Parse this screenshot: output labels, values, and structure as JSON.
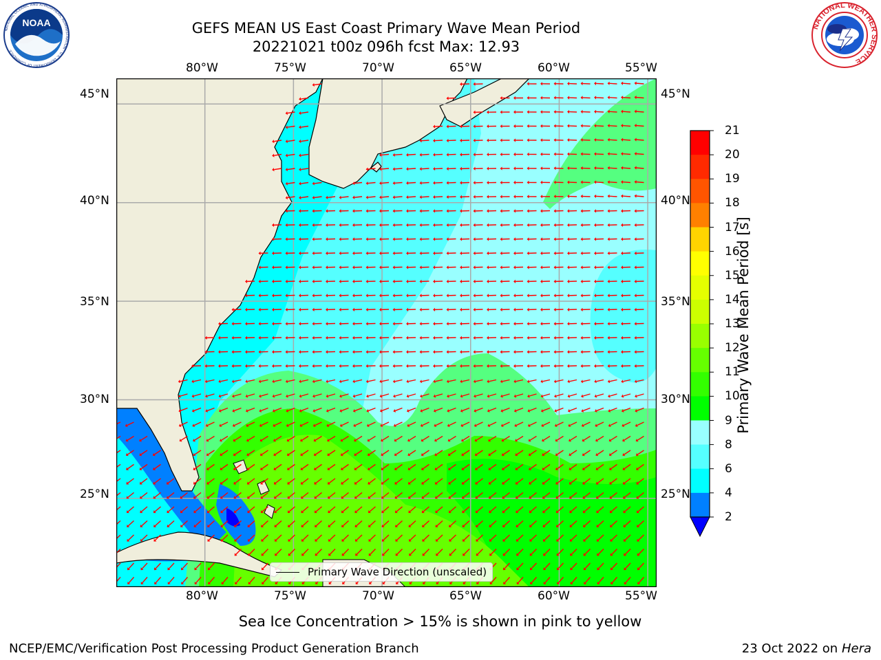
{
  "header": {
    "title_line1": "GEFS MEAN US East Coast Primary Wave Mean Period",
    "title_line2": "20221021 t00z 096h fcst   Max: 12.93"
  },
  "map": {
    "top_lon_labels": [
      "80°W",
      "75°W",
      "70°W",
      "65°W",
      "60°W",
      "55°W"
    ],
    "bottom_lon_labels": [
      "80°W",
      "75°W",
      "70°W",
      "65°W",
      "60°W",
      "55°W"
    ],
    "left_lat_labels": [
      "45°N",
      "40°N",
      "35°N",
      "30°N",
      "25°N"
    ],
    "right_lat_labels": [
      "45°N",
      "40°N",
      "35°N",
      "30°N",
      "25°N"
    ],
    "lon_range": [
      -85,
      -54.5
    ],
    "lat_range": [
      20.5,
      46.3
    ],
    "ocean_color": "#00ffff",
    "land_color": "#f0eedc",
    "arrow_color": "#ff0000",
    "grid": true
  },
  "legend": {
    "label": "Primary Wave Direction (unscaled)"
  },
  "colorbar": {
    "label": "Primary Wave Mean Period [s]",
    "ticks": [
      "21",
      "20",
      "19",
      "18",
      "17",
      "16",
      "15",
      "14",
      "13",
      "12",
      "11",
      "10",
      "9",
      "8",
      "6",
      "4",
      "2"
    ],
    "colors": [
      "#ff0000",
      "#ff2a00",
      "#ff5500",
      "#ff8000",
      "#ffaa00",
      "#ffd400",
      "#ffff00",
      "#e5ff00",
      "#ccff00",
      "#99ff00",
      "#66ff00",
      "#33ff00",
      "#00ff00",
      "#55ff80",
      "#99ffff",
      "#55ffff",
      "#00ffff",
      "#0080ff",
      "#0000ff"
    ],
    "extend_min_color": "#0000ff"
  },
  "notes": {
    "sea_ice": "Sea Ice Concentration > 15% is shown in pink to yellow"
  },
  "footer": {
    "left": "NCEP/EMC/Verification Post Processing Product Generation Branch",
    "right_prefix": "23 Oct 2022 on ",
    "right_host": "Hera"
  },
  "logos": {
    "noaa_text": "NOAA",
    "noaa_ring_text": "NATIONAL OCEANIC AND ATMOSPHERIC ADMINISTRATION · U.S. DEPARTMENT OF COMMERCE",
    "nws_ring_text": "NATIONAL WEATHER SERVICE"
  },
  "wave_field": {
    "color_classes": {
      "cyan_4_6": "#00ffff",
      "cyan_6_8": "#55ffff",
      "light_8_9": "#99ffff",
      "green_9_10": "#55ff80",
      "green_10_11": "#00ff00",
      "green_11_12": "#33ff00",
      "yellowgreen_12_13": "#66ff00",
      "lime_13": "#99ff00",
      "blue_2_4": "#0080ff",
      "darkblue": "#0000ff"
    }
  }
}
